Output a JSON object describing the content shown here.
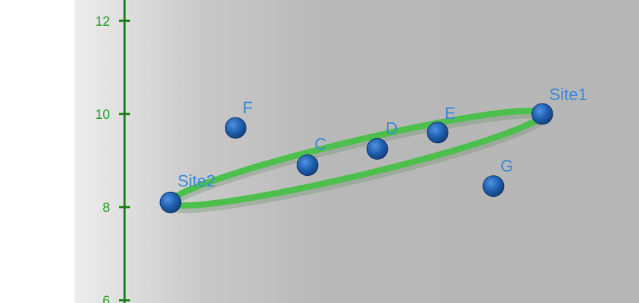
{
  "chart_data": {
    "type": "scatter",
    "y_ticks": [
      "6",
      "8",
      "10",
      "12"
    ],
    "ylim": [
      6,
      12
    ],
    "points": [
      {
        "label": "Site1",
        "x": 8.0,
        "y": 10.0
      },
      {
        "label": "Site2",
        "x": 0.0,
        "y": 8.1
      },
      {
        "label": "C",
        "x": 2.95,
        "y": 8.9
      },
      {
        "label": "D",
        "x": 4.45,
        "y": 9.25
      },
      {
        "label": "E",
        "x": 5.75,
        "y": 9.6
      },
      {
        "label": "F",
        "x": 1.4,
        "y": 9.7
      },
      {
        "label": "G",
        "x": 6.95,
        "y": 8.45
      }
    ],
    "ellipse": {
      "foci": [
        "Site1",
        "Site2"
      ]
    },
    "colors": {
      "axis": "#147a14",
      "tick_text": "#1f9a1f",
      "ellipse": "#4cbf4c",
      "point": "#1f5fb0",
      "point_label": "#3a8ad6",
      "background": "#b7b7b7"
    },
    "grid": false
  }
}
